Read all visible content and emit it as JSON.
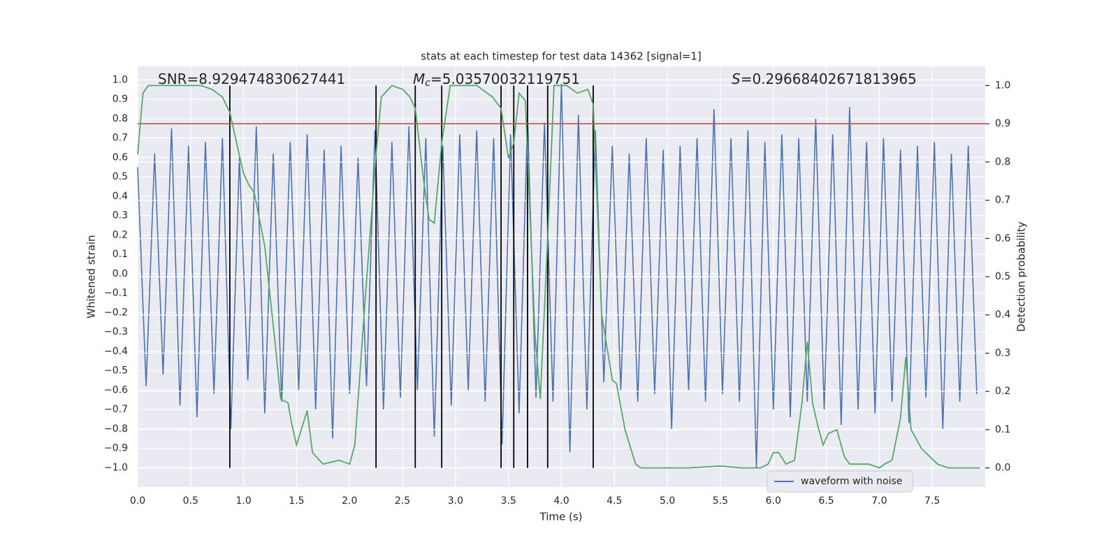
{
  "chart_data": {
    "type": "line",
    "title": "stats at each timestep for test data 14362 [signal=1]",
    "xlabel": "Time (s)",
    "ylabel": "Whitened strain",
    "y2label": "Detection probability",
    "xlim": [
      0,
      8
    ],
    "ylim": [
      -1.1,
      1.07
    ],
    "y2lim": [
      -0.05,
      1.05
    ],
    "xticks": [
      {
        "value": 0,
        "label": "0.0"
      },
      {
        "value": 0.5,
        "label": "0.5"
      },
      {
        "value": 1,
        "label": "1.0"
      },
      {
        "value": 1.5,
        "label": "1.5"
      },
      {
        "value": 2,
        "label": "2.0"
      },
      {
        "value": 2.5,
        "label": "2.5"
      },
      {
        "value": 3,
        "label": "3.0"
      },
      {
        "value": 3.5,
        "label": "3.5"
      },
      {
        "value": 4,
        "label": "4.0"
      },
      {
        "value": 4.5,
        "label": "4.5"
      },
      {
        "value": 5,
        "label": "5.0"
      },
      {
        "value": 5.5,
        "label": "5.5"
      },
      {
        "value": 6,
        "label": "6.0"
      },
      {
        "value": 6.5,
        "label": "6.5"
      },
      {
        "value": 7,
        "label": "7.0"
      },
      {
        "value": 7.5,
        "label": "7.5"
      }
    ],
    "yticks": [
      {
        "value": -1,
        "label": "−1.0"
      },
      {
        "value": -0.9,
        "label": "−0.9"
      },
      {
        "value": -0.8,
        "label": "−0.8"
      },
      {
        "value": -0.7,
        "label": "−0.7"
      },
      {
        "value": -0.6,
        "label": "−0.6"
      },
      {
        "value": -0.5,
        "label": "−0.5"
      },
      {
        "value": -0.4,
        "label": "−0.4"
      },
      {
        "value": -0.3,
        "label": "−0.3"
      },
      {
        "value": -0.2,
        "label": "−0.2"
      },
      {
        "value": -0.1,
        "label": "−0.1"
      },
      {
        "value": 0,
        "label": "0.0"
      },
      {
        "value": 0.1,
        "label": "0.1"
      },
      {
        "value": 0.2,
        "label": "0.2"
      },
      {
        "value": 0.3,
        "label": "0.3"
      },
      {
        "value": 0.4,
        "label": "0.4"
      },
      {
        "value": 0.5,
        "label": "0.5"
      },
      {
        "value": 0.6,
        "label": "0.6"
      },
      {
        "value": 0.7,
        "label": "0.7"
      },
      {
        "value": 0.8,
        "label": "0.8"
      },
      {
        "value": 0.9,
        "label": "0.9"
      },
      {
        "value": 1,
        "label": "1.0"
      }
    ],
    "y2ticks": [
      {
        "value": 0,
        "label": "0.0"
      },
      {
        "value": 0.1,
        "label": "0.1"
      },
      {
        "value": 0.2,
        "label": "0.2"
      },
      {
        "value": 0.3,
        "label": "0.3"
      },
      {
        "value": 0.4,
        "label": "0.4"
      },
      {
        "value": 0.5,
        "label": "0.5"
      },
      {
        "value": 0.6,
        "label": "0.6"
      },
      {
        "value": 0.7,
        "label": "0.7"
      },
      {
        "value": 0.8,
        "label": "0.8"
      },
      {
        "value": 0.9,
        "label": "0.9"
      },
      {
        "value": 1,
        "label": "1.0"
      }
    ],
    "grid": true,
    "legend": "lower right",
    "annotations": [
      {
        "text": "SNR=8.929474830627441"
      },
      {
        "symbol": "M",
        "subscript": "c",
        "text": "=5.03570032119751"
      },
      {
        "symbol": "S",
        "text": "=0.29668402671813965"
      }
    ],
    "vlines": {
      "color": "#000000",
      "x": [
        0.87,
        2.25,
        2.62,
        2.87,
        3.43,
        3.55,
        3.68,
        3.87,
        4.3
      ]
    },
    "hlines": [
      {
        "value": 0.9,
        "axis": "y2",
        "color": "#c44e52"
      }
    ],
    "series": [
      {
        "name": "waveform with noise",
        "color": "#4c72b0",
        "axis": "y",
        "x": [
          0,
          0.08,
          0.16,
          0.24,
          0.32,
          0.4,
          0.48,
          0.56,
          0.64,
          0.72,
          0.8,
          0.88,
          0.96,
          1.04,
          1.12,
          1.2,
          1.28,
          1.36,
          1.44,
          1.52,
          1.6,
          1.68,
          1.76,
          1.84,
          1.92,
          2,
          2.08,
          2.16,
          2.24,
          2.32,
          2.4,
          2.48,
          2.56,
          2.64,
          2.72,
          2.8,
          2.88,
          2.96,
          3.04,
          3.12,
          3.2,
          3.28,
          3.36,
          3.44,
          3.52,
          3.6,
          3.68,
          3.76,
          3.84,
          3.92,
          4,
          4.08,
          4.16,
          4.24,
          4.32,
          4.4,
          4.48,
          4.56,
          4.64,
          4.72,
          4.8,
          4.88,
          4.96,
          5.04,
          5.12,
          5.2,
          5.28,
          5.36,
          5.44,
          5.52,
          5.6,
          5.68,
          5.76,
          5.84,
          5.92,
          6,
          6.08,
          6.16,
          6.24,
          6.32,
          6.4,
          6.48,
          6.56,
          6.64,
          6.72,
          6.8,
          6.88,
          6.96,
          7.04,
          7.12,
          7.2,
          7.28,
          7.36,
          7.44,
          7.52,
          7.6,
          7.68,
          7.76,
          7.84,
          7.92
        ],
        "values": [
          0.55,
          -0.58,
          0.62,
          -0.52,
          0.75,
          -0.68,
          0.66,
          -0.74,
          0.68,
          -0.62,
          0.7,
          -0.8,
          0.6,
          -0.55,
          0.76,
          -0.72,
          0.62,
          -0.66,
          0.68,
          -0.6,
          0.72,
          -0.7,
          0.64,
          -0.85,
          0.66,
          -0.62,
          0.6,
          -0.58,
          0.74,
          -0.7,
          0.68,
          -0.64,
          0.76,
          -0.6,
          0.7,
          -0.84,
          0.66,
          -0.68,
          0.72,
          -0.6,
          0.74,
          -0.66,
          0.7,
          -0.88,
          0.72,
          -0.72,
          0.8,
          -0.64,
          0.78,
          -0.66,
          0.98,
          -0.92,
          0.82,
          -0.7,
          0.74,
          -0.56,
          0.66,
          -0.6,
          0.62,
          -0.66,
          0.7,
          -0.62,
          0.64,
          -0.8,
          0.66,
          -0.6,
          0.7,
          -0.66,
          0.85,
          -0.62,
          0.7,
          -0.66,
          0.74,
          -1,
          0.68,
          -0.7,
          0.72,
          -0.74,
          0.7,
          -0.66,
          0.8,
          -0.7,
          0.72,
          -0.78,
          0.86,
          -0.7,
          0.68,
          -0.72,
          0.7,
          -0.66,
          0.64,
          -0.77,
          0.66,
          -0.64,
          0.68,
          -0.8,
          0.62,
          -0.66,
          0.66,
          -0.62
        ]
      },
      {
        "color": "#55a868",
        "axis": "y2",
        "x": [
          0,
          0.05,
          0.1,
          0.3,
          0.6,
          0.7,
          0.8,
          0.87,
          0.95,
          1,
          1.05,
          1.1,
          1.2,
          1.3,
          1.35,
          1.42,
          1.45,
          1.5,
          1.6,
          1.65,
          1.75,
          1.9,
          2,
          2.05,
          2.15,
          2.25,
          2.3,
          2.4,
          2.5,
          2.57,
          2.62,
          2.7,
          2.75,
          2.8,
          2.87,
          2.95,
          3.1,
          3.2,
          3.35,
          3.43,
          3.5,
          3.55,
          3.6,
          3.66,
          3.75,
          3.8,
          3.87,
          3.93,
          4.05,
          4.15,
          4.25,
          4.3,
          4.38,
          4.48,
          4.52,
          4.6,
          4.7,
          4.75,
          5,
          5.2,
          5.5,
          5.7,
          5.88,
          5.95,
          6,
          6.05,
          6.12,
          6.2,
          6.27,
          6.32,
          6.37,
          6.42,
          6.47,
          6.52,
          6.6,
          6.67,
          6.72,
          6.9,
          7,
          7.05,
          7.12,
          7.2,
          7.25,
          7.3,
          7.4,
          7.55,
          7.65,
          7.95
        ],
        "values": [
          0.82,
          0.98,
          1,
          1,
          1,
          0.99,
          0.97,
          0.93,
          0.83,
          0.77,
          0.74,
          0.72,
          0.58,
          0.32,
          0.18,
          0.17,
          0.12,
          0.06,
          0.15,
          0.04,
          0.01,
          0.02,
          0.01,
          0.06,
          0.45,
          0.82,
          0.97,
          1,
          0.99,
          0.97,
          0.94,
          0.75,
          0.65,
          0.64,
          0.85,
          1,
          1,
          1,
          0.97,
          0.94,
          0.81,
          0.85,
          0.98,
          0.96,
          0.35,
          0.18,
          0.6,
          1,
          1,
          0.98,
          0.99,
          0.95,
          0.4,
          0.23,
          0.22,
          0.1,
          0.01,
          0,
          0,
          0,
          0.005,
          0,
          0,
          0.01,
          0.04,
          0.04,
          0.01,
          0.02,
          0.17,
          0.33,
          0.17,
          0.11,
          0.06,
          0.09,
          0.1,
          0.03,
          0.01,
          0.01,
          0,
          0.01,
          0.02,
          0.13,
          0.29,
          0.1,
          0.05,
          0.01,
          0,
          0
        ]
      }
    ]
  }
}
